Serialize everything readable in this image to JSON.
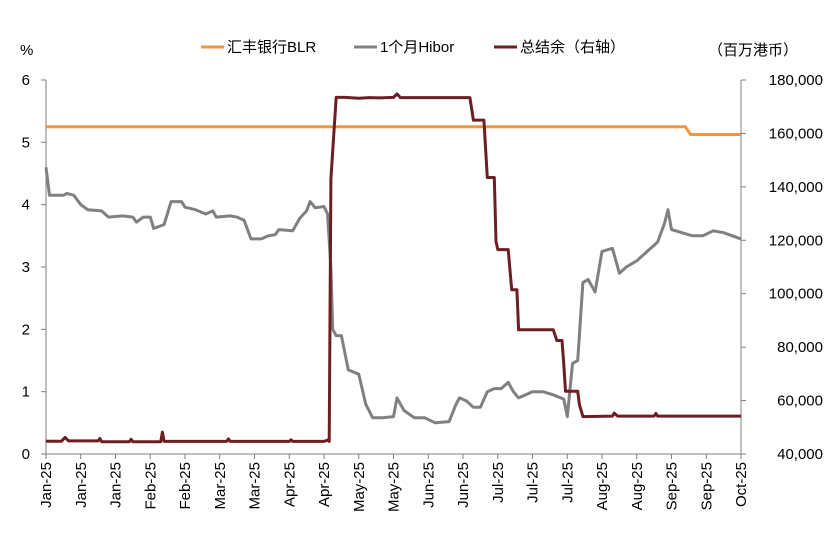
{
  "chart_data": {
    "type": "line",
    "left_axis": {
      "unit_label": "%",
      "ylim": [
        0,
        6
      ],
      "ticks": [
        "0",
        "1",
        "2",
        "3",
        "4",
        "5",
        "6"
      ]
    },
    "right_axis": {
      "unit_label": "（百万港币）",
      "ylim": [
        40000,
        180000
      ],
      "ticks": [
        "40,000",
        "60,000",
        "80,000",
        "100,000",
        "120,000",
        "140,000",
        "160,000",
        "180,000"
      ]
    },
    "x_tick_labels": [
      "Jan-25",
      "Jan-25",
      "Jan-25",
      "Feb-25",
      "Feb-25",
      "Mar-25",
      "Mar-25",
      "Apr-25",
      "Apr-25",
      "May-25",
      "May-25",
      "Jun-25",
      "Jun-25",
      "Jul-25",
      "Jul-25",
      "Jul-25",
      "Aug-25",
      "Aug-25",
      "Sep-25",
      "Sep-25",
      "Oct-25"
    ],
    "x_range": [
      0,
      20
    ],
    "series": [
      {
        "name": "汇丰银行BLR",
        "axis": "left",
        "color": "#F0963C",
        "points": [
          [
            0,
            5.25
          ],
          [
            18.4,
            5.25
          ],
          [
            18.55,
            5.125
          ],
          [
            20,
            5.125
          ]
        ]
      },
      {
        "name": "1个月Hibor",
        "axis": "left",
        "color": "#808080",
        "points": [
          [
            0,
            4.6
          ],
          [
            0.1,
            4.15
          ],
          [
            0.5,
            4.15
          ],
          [
            0.6,
            4.18
          ],
          [
            0.8,
            4.15
          ],
          [
            1.0,
            4.0
          ],
          [
            1.2,
            3.92
          ],
          [
            1.6,
            3.9
          ],
          [
            1.8,
            3.8
          ],
          [
            2.2,
            3.82
          ],
          [
            2.5,
            3.8
          ],
          [
            2.6,
            3.72
          ],
          [
            2.8,
            3.8
          ],
          [
            3.0,
            3.8
          ],
          [
            3.1,
            3.62
          ],
          [
            3.4,
            3.68
          ],
          [
            3.6,
            4.05
          ],
          [
            3.9,
            4.05
          ],
          [
            4.0,
            3.96
          ],
          [
            4.3,
            3.92
          ],
          [
            4.6,
            3.85
          ],
          [
            4.8,
            3.9
          ],
          [
            4.9,
            3.8
          ],
          [
            5.3,
            3.82
          ],
          [
            5.5,
            3.8
          ],
          [
            5.7,
            3.75
          ],
          [
            5.9,
            3.45
          ],
          [
            6.2,
            3.45
          ],
          [
            6.4,
            3.5
          ],
          [
            6.6,
            3.52
          ],
          [
            6.7,
            3.6
          ],
          [
            7.1,
            3.58
          ],
          [
            7.3,
            3.78
          ],
          [
            7.5,
            3.9
          ],
          [
            7.6,
            4.05
          ],
          [
            7.75,
            3.95
          ],
          [
            8.0,
            3.97
          ],
          [
            8.1,
            3.85
          ],
          [
            8.2,
            3.0
          ],
          [
            8.25,
            2.0
          ],
          [
            8.35,
            1.9
          ],
          [
            8.5,
            1.9
          ],
          [
            8.7,
            1.35
          ],
          [
            9.0,
            1.28
          ],
          [
            9.2,
            0.8
          ],
          [
            9.4,
            0.58
          ],
          [
            9.7,
            0.58
          ],
          [
            10.0,
            0.6
          ],
          [
            10.1,
            0.9
          ],
          [
            10.3,
            0.7
          ],
          [
            10.6,
            0.58
          ],
          [
            10.9,
            0.58
          ],
          [
            11.2,
            0.5
          ],
          [
            11.6,
            0.52
          ],
          [
            11.8,
            0.8
          ],
          [
            11.9,
            0.9
          ],
          [
            12.1,
            0.85
          ],
          [
            12.3,
            0.75
          ],
          [
            12.5,
            0.75
          ],
          [
            12.7,
            1.0
          ],
          [
            12.9,
            1.05
          ],
          [
            13.1,
            1.05
          ],
          [
            13.3,
            1.15
          ],
          [
            13.45,
            1.0
          ],
          [
            13.6,
            0.9
          ],
          [
            14.0,
            1.0
          ],
          [
            14.3,
            1.0
          ],
          [
            14.6,
            0.95
          ],
          [
            14.9,
            0.88
          ],
          [
            15.0,
            0.6
          ],
          [
            15.15,
            1.45
          ],
          [
            15.3,
            1.5
          ],
          [
            15.45,
            2.75
          ],
          [
            15.6,
            2.8
          ],
          [
            15.8,
            2.6
          ],
          [
            16.0,
            3.25
          ],
          [
            16.3,
            3.3
          ],
          [
            16.5,
            2.9
          ],
          [
            16.7,
            3.0
          ],
          [
            17.0,
            3.1
          ],
          [
            17.3,
            3.25
          ],
          [
            17.6,
            3.4
          ],
          [
            17.8,
            3.7
          ],
          [
            17.9,
            3.92
          ],
          [
            18.0,
            3.6
          ],
          [
            18.3,
            3.55
          ],
          [
            18.6,
            3.5
          ],
          [
            18.9,
            3.5
          ],
          [
            19.2,
            3.58
          ],
          [
            19.5,
            3.55
          ],
          [
            20,
            3.45
          ]
        ]
      },
      {
        "name": "总结余（右轴）",
        "axis": "right",
        "color": "#6B1F24",
        "points": [
          [
            0,
            44800
          ],
          [
            0.45,
            44800
          ],
          [
            0.55,
            46200
          ],
          [
            0.65,
            44900
          ],
          [
            1.5,
            44900
          ],
          [
            1.55,
            45800
          ],
          [
            1.6,
            44600
          ],
          [
            2.4,
            44600
          ],
          [
            2.45,
            45500
          ],
          [
            2.5,
            44600
          ],
          [
            3.3,
            44600
          ],
          [
            3.35,
            48200
          ],
          [
            3.4,
            44700
          ],
          [
            5.2,
            44700
          ],
          [
            5.25,
            45700
          ],
          [
            5.3,
            44700
          ],
          [
            7.0,
            44700
          ],
          [
            7.05,
            45300
          ],
          [
            7.1,
            44700
          ],
          [
            8.0,
            44700
          ],
          [
            8.1,
            45200
          ],
          [
            8.15,
            44700
          ],
          [
            8.2,
            143000
          ],
          [
            8.35,
            173500
          ],
          [
            8.6,
            173500
          ],
          [
            9.0,
            173200
          ],
          [
            9.3,
            173400
          ],
          [
            9.6,
            173300
          ],
          [
            9.8,
            173400
          ],
          [
            10.0,
            173500
          ],
          [
            10.1,
            174800
          ],
          [
            10.2,
            173400
          ],
          [
            12.2,
            173400
          ],
          [
            12.3,
            165000
          ],
          [
            12.6,
            165000
          ],
          [
            12.7,
            143500
          ],
          [
            12.9,
            143500
          ],
          [
            12.95,
            119500
          ],
          [
            13.0,
            116500
          ],
          [
            13.3,
            116500
          ],
          [
            13.4,
            101500
          ],
          [
            13.55,
            101500
          ],
          [
            13.6,
            86500
          ],
          [
            14.6,
            86500
          ],
          [
            14.7,
            82500
          ],
          [
            14.85,
            82500
          ],
          [
            14.9,
            73500
          ],
          [
            14.95,
            63500
          ],
          [
            15.3,
            63500
          ],
          [
            15.35,
            58500
          ],
          [
            15.45,
            54000
          ],
          [
            16.3,
            54200
          ],
          [
            16.35,
            55300
          ],
          [
            16.45,
            54200
          ],
          [
            17.5,
            54200
          ],
          [
            17.55,
            55200
          ],
          [
            17.6,
            54200
          ],
          [
            20,
            54200
          ]
        ]
      }
    ]
  }
}
